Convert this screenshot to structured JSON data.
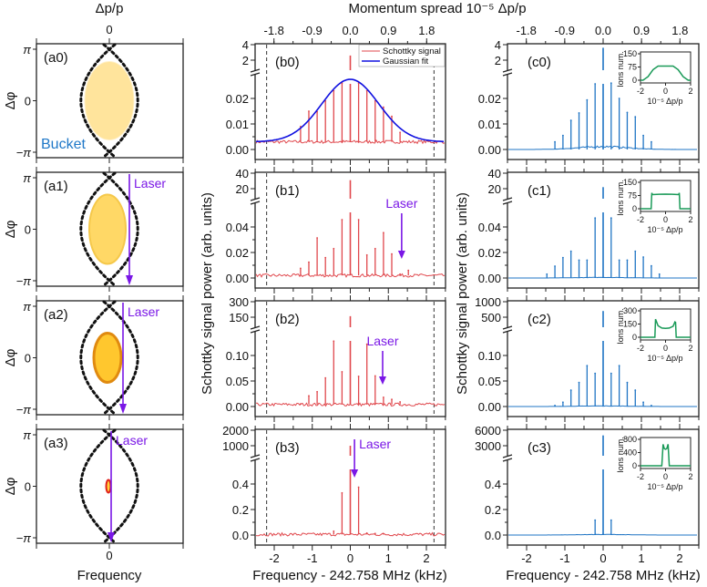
{
  "top_axis": {
    "title": "Momentum spread 10⁻⁵ Δp/p",
    "tick_labels": [
      "-1.8",
      "-0.9",
      "0.0",
      "0.9",
      "1.8"
    ],
    "tick_values": [
      -1.8,
      -0.9,
      0.0,
      0.9,
      1.8
    ]
  },
  "left_column": {
    "top_title": "Δp/p",
    "top_tick": "0",
    "bottom_title": "Frequency",
    "bottom_tick": "0",
    "ylabel": "Δφ",
    "yticks": [
      "π",
      "0",
      "−π"
    ],
    "bucket_label": "Bucket",
    "laser_label": "Laser",
    "panels": [
      "(a0)",
      "(a1)",
      "(a2)",
      "(a3)"
    ],
    "colors": {
      "separatrix": "#111111",
      "laser": "#7a17e6",
      "bunch_a0": "#ffe49c",
      "bunch_a1": "#ffd866",
      "bunch_a2": "#ffc72e",
      "bunch_a2_edge": "#e08a10",
      "bunch_a3_edge": "#e0201a"
    }
  },
  "middle_ylabel": "Schottky signal power (arb. units)",
  "right_ylabel": "Schottky signal power (arb. units)",
  "xlabel": "Frequency - 242.758 MHz (kHz)",
  "xtick_labels": [
    "-2",
    "-1",
    "0",
    "1",
    "2"
  ],
  "legend": {
    "schottky": "Schottky signal",
    "gaussian": "Gaussian fit"
  },
  "laser_label": "Laser",
  "colors": {
    "schottky_b": "#e0474c",
    "schottky_c": "#1f74c4",
    "gaussian": "#1010e0",
    "inset": "#1a9a58",
    "laser": "#7a17e6"
  },
  "chart_data": [
    {
      "id": "b0",
      "label": "(b0)",
      "type": "line",
      "xlim": [
        -2.5,
        2.5
      ],
      "upper_ticks": [
        "4",
        "2"
      ],
      "upper_max": 4,
      "lower_ticks": [
        "0.00",
        "0.01",
        "0.02"
      ],
      "lower_step": 0.01,
      "baseline": 0.003,
      "dashed_lines_khz": [
        -2.2,
        2.2
      ],
      "peak_spacing_khz": 0.218,
      "peak_index": [
        -6,
        -5,
        -4,
        -3,
        -2,
        -1,
        0,
        1,
        2,
        3,
        4,
        5,
        6
      ],
      "peak_values": [
        0.009,
        0.015,
        0.0148,
        0.019,
        0.023,
        0.026,
        2.6,
        0.026,
        0.023,
        0.019,
        0.0166,
        0.013,
        0.0067
      ],
      "gaussian_fit": {
        "amplitude": 0.0245,
        "center": 0.0,
        "sigma": 0.75,
        "offset": 0.003
      }
    },
    {
      "id": "b1",
      "label": "(b1)",
      "type": "line",
      "xlim": [
        -2.5,
        2.5
      ],
      "upper_ticks": [
        "40",
        "20"
      ],
      "upper_max": 40,
      "lower_ticks": [
        "0.00",
        "0.02",
        "0.04"
      ],
      "lower_step": 0.02,
      "baseline": 0.002,
      "dashed_lines_khz": [
        -2.2,
        2.2
      ],
      "peak_spacing_khz": 0.218,
      "peak_index": [
        -6,
        -5,
        -4,
        -3,
        -2,
        -1,
        0,
        1,
        2,
        3,
        4,
        5,
        6,
        7
      ],
      "peak_values": [
        0.0076,
        0.0124,
        0.0314,
        0.016,
        0.023,
        0.0457,
        31,
        0.0457,
        0.018,
        0.023,
        0.0355,
        0.0188,
        0.003,
        0.006
      ]
    },
    {
      "id": "b2",
      "label": "(b2)",
      "type": "line",
      "xlim": [
        -2.5,
        2.5
      ],
      "upper_ticks": [
        "300",
        "150"
      ],
      "upper_max": 300,
      "lower_ticks": [
        "0.00",
        "0.05",
        "0.10"
      ],
      "lower_step": 0.05,
      "baseline": 0.004,
      "dashed_lines_khz": [
        -2.2,
        2.2
      ],
      "peak_spacing_khz": 0.218,
      "peak_index": [
        -6,
        -5,
        -4,
        -3,
        -2,
        -1,
        0,
        1,
        2,
        3,
        4,
        5,
        6
      ],
      "peak_values": [
        0.005,
        0.021,
        0.029,
        0.056,
        0.128,
        0.068,
        160,
        0.059,
        0.122,
        0.06,
        0.018,
        0.014,
        0.009
      ]
    },
    {
      "id": "b3",
      "label": "(b3)",
      "type": "line",
      "xlim": [
        -2.5,
        2.5
      ],
      "upper_ticks": [
        "2000",
        "1000"
      ],
      "upper_max": 2000,
      "lower_ticks": [
        "0.0",
        "0.2",
        "0.4"
      ],
      "lower_step": 0.2,
      "baseline": 0.005,
      "dashed_lines_khz": [
        -2.2,
        2.2
      ],
      "peak_spacing_khz": 0.218,
      "peak_index": [
        -2,
        -1,
        0,
        1,
        2,
        3,
        4
      ],
      "peak_values": [
        0.03,
        0.33,
        1000,
        0.375,
        0.015,
        0.012,
        0.01
      ]
    },
    {
      "id": "c0",
      "label": "(c0)",
      "type": "line",
      "xlim": [
        -2.5,
        2.5
      ],
      "upper_ticks": [
        "4",
        "2"
      ],
      "upper_max": 4,
      "lower_ticks": [
        "0.00",
        "0.01",
        "0.02"
      ],
      "lower_step": 0.01,
      "baseline": 0.0,
      "peak_spacing_khz": 0.21,
      "peak_index": [
        -6,
        -5,
        -4,
        -3,
        -2,
        -1,
        0,
        1,
        2,
        3,
        4,
        5,
        6
      ],
      "peak_values": [
        0.003,
        0.0055,
        0.0114,
        0.0143,
        0.0194,
        0.0257,
        3.6,
        0.026,
        0.02,
        0.0145,
        0.0128,
        0.0055,
        0.003
      ],
      "inset": {
        "ylabel": "Ions num.",
        "xlabel": "10⁻⁵ Δp/p",
        "xlim": [
          -2,
          2
        ],
        "x_ticks": [
          "-2",
          "0",
          "2"
        ],
        "y_ticks": [
          "0",
          "75",
          "150"
        ],
        "ylim": [
          0,
          150
        ],
        "x": [
          -2,
          -1.8,
          -1.4,
          -1.0,
          -0.6,
          0,
          0.6,
          1.0,
          1.4,
          1.8,
          2
        ],
        "y": [
          0,
          0,
          20,
          60,
          80,
          80,
          80,
          60,
          20,
          0,
          0
        ]
      }
    },
    {
      "id": "c1",
      "label": "(c1)",
      "type": "line",
      "xlim": [
        -2.5,
        2.5
      ],
      "upper_ticks": [
        "40",
        "20"
      ],
      "upper_max": 40,
      "lower_ticks": [
        "0.00",
        "0.02",
        "0.04"
      ],
      "lower_step": 0.02,
      "baseline": 0.0,
      "peak_spacing_khz": 0.21,
      "peak_index": [
        -7,
        -6,
        -5,
        -4,
        -3,
        -2,
        -1,
        0,
        1,
        2,
        3,
        4,
        5,
        6,
        7
      ],
      "peak_values": [
        0.003,
        0.0093,
        0.016,
        0.021,
        0.014,
        0.014,
        0.047,
        22,
        0.047,
        0.014,
        0.014,
        0.021,
        0.0164,
        0.0095,
        0.003
      ],
      "inset": {
        "ylabel": "Ions num.",
        "xlabel": "10⁻⁵ Δp/p",
        "xlim": [
          -2,
          2
        ],
        "x_ticks": [
          "-2",
          "0",
          "2"
        ],
        "y_ticks": [
          "0",
          "75",
          "150"
        ],
        "ylim": [
          0,
          150
        ],
        "x": [
          -2,
          -1.15,
          -1.1,
          -1.05,
          -0.5,
          0,
          0.5,
          1.05,
          1.1,
          1.15,
          2
        ],
        "y": [
          0,
          0,
          90,
          80,
          82,
          83,
          82,
          80,
          90,
          0,
          0
        ]
      }
    },
    {
      "id": "c2",
      "label": "(c2)",
      "type": "line",
      "xlim": [
        -2.5,
        2.5
      ],
      "upper_ticks": [
        "1000",
        "500"
      ],
      "upper_max": 1000,
      "lower_ticks": [
        "0.00",
        "0.05",
        "0.10"
      ],
      "lower_step": 0.05,
      "baseline": 0.0,
      "peak_spacing_khz": 0.21,
      "peak_index": [
        -6,
        -5,
        -4,
        -3,
        -2,
        -1,
        0,
        1,
        2,
        3,
        4,
        5,
        6
      ],
      "peak_values": [
        0.002,
        0.0085,
        0.032,
        0.047,
        0.08,
        0.065,
        700,
        0.065,
        0.08,
        0.047,
        0.032,
        0.0085,
        0.002
      ],
      "inset": {
        "ylabel": "Ions num.",
        "xlabel": "10⁻⁵ Δp/p",
        "xlim": [
          -2,
          2
        ],
        "x_ticks": [
          "-2",
          "0",
          "2"
        ],
        "y_ticks": [
          "0",
          "150",
          "300"
        ],
        "ylim": [
          0,
          300
        ],
        "x": [
          -2,
          -0.85,
          -0.8,
          -0.6,
          -0.3,
          0,
          0.3,
          0.6,
          0.75,
          0.8,
          0.85,
          2
        ],
        "y": [
          0,
          0,
          205,
          130,
          105,
          100,
          105,
          125,
          175,
          170,
          0,
          0
        ]
      }
    },
    {
      "id": "c3",
      "label": "(c3)",
      "type": "line",
      "xlim": [
        -2.5,
        2.5
      ],
      "upper_ticks": [
        "6000",
        "3000"
      ],
      "upper_max": 6000,
      "lower_ticks": [
        "0.0",
        "0.2",
        "0.4"
      ],
      "lower_step": 0.2,
      "baseline": 0.0,
      "peak_spacing_khz": 0.21,
      "peak_index": [
        -1,
        0,
        1
      ],
      "peak_values": [
        0.117,
        5000,
        0.117
      ],
      "inset": {
        "ylabel": "Ions num.",
        "xlabel": "10⁻⁵ Δp/p",
        "xlim": [
          -2,
          2
        ],
        "x_ticks": [
          "-2",
          "0",
          "2"
        ],
        "y_ticks": [
          "0",
          "400",
          "800"
        ],
        "ylim": [
          0,
          800
        ],
        "x": [
          -2,
          -0.3,
          -0.2,
          -0.1,
          0,
          0.1,
          0.2,
          0.3,
          2
        ],
        "y": [
          0,
          0,
          650,
          520,
          500,
          520,
          650,
          0,
          0
        ]
      }
    }
  ]
}
